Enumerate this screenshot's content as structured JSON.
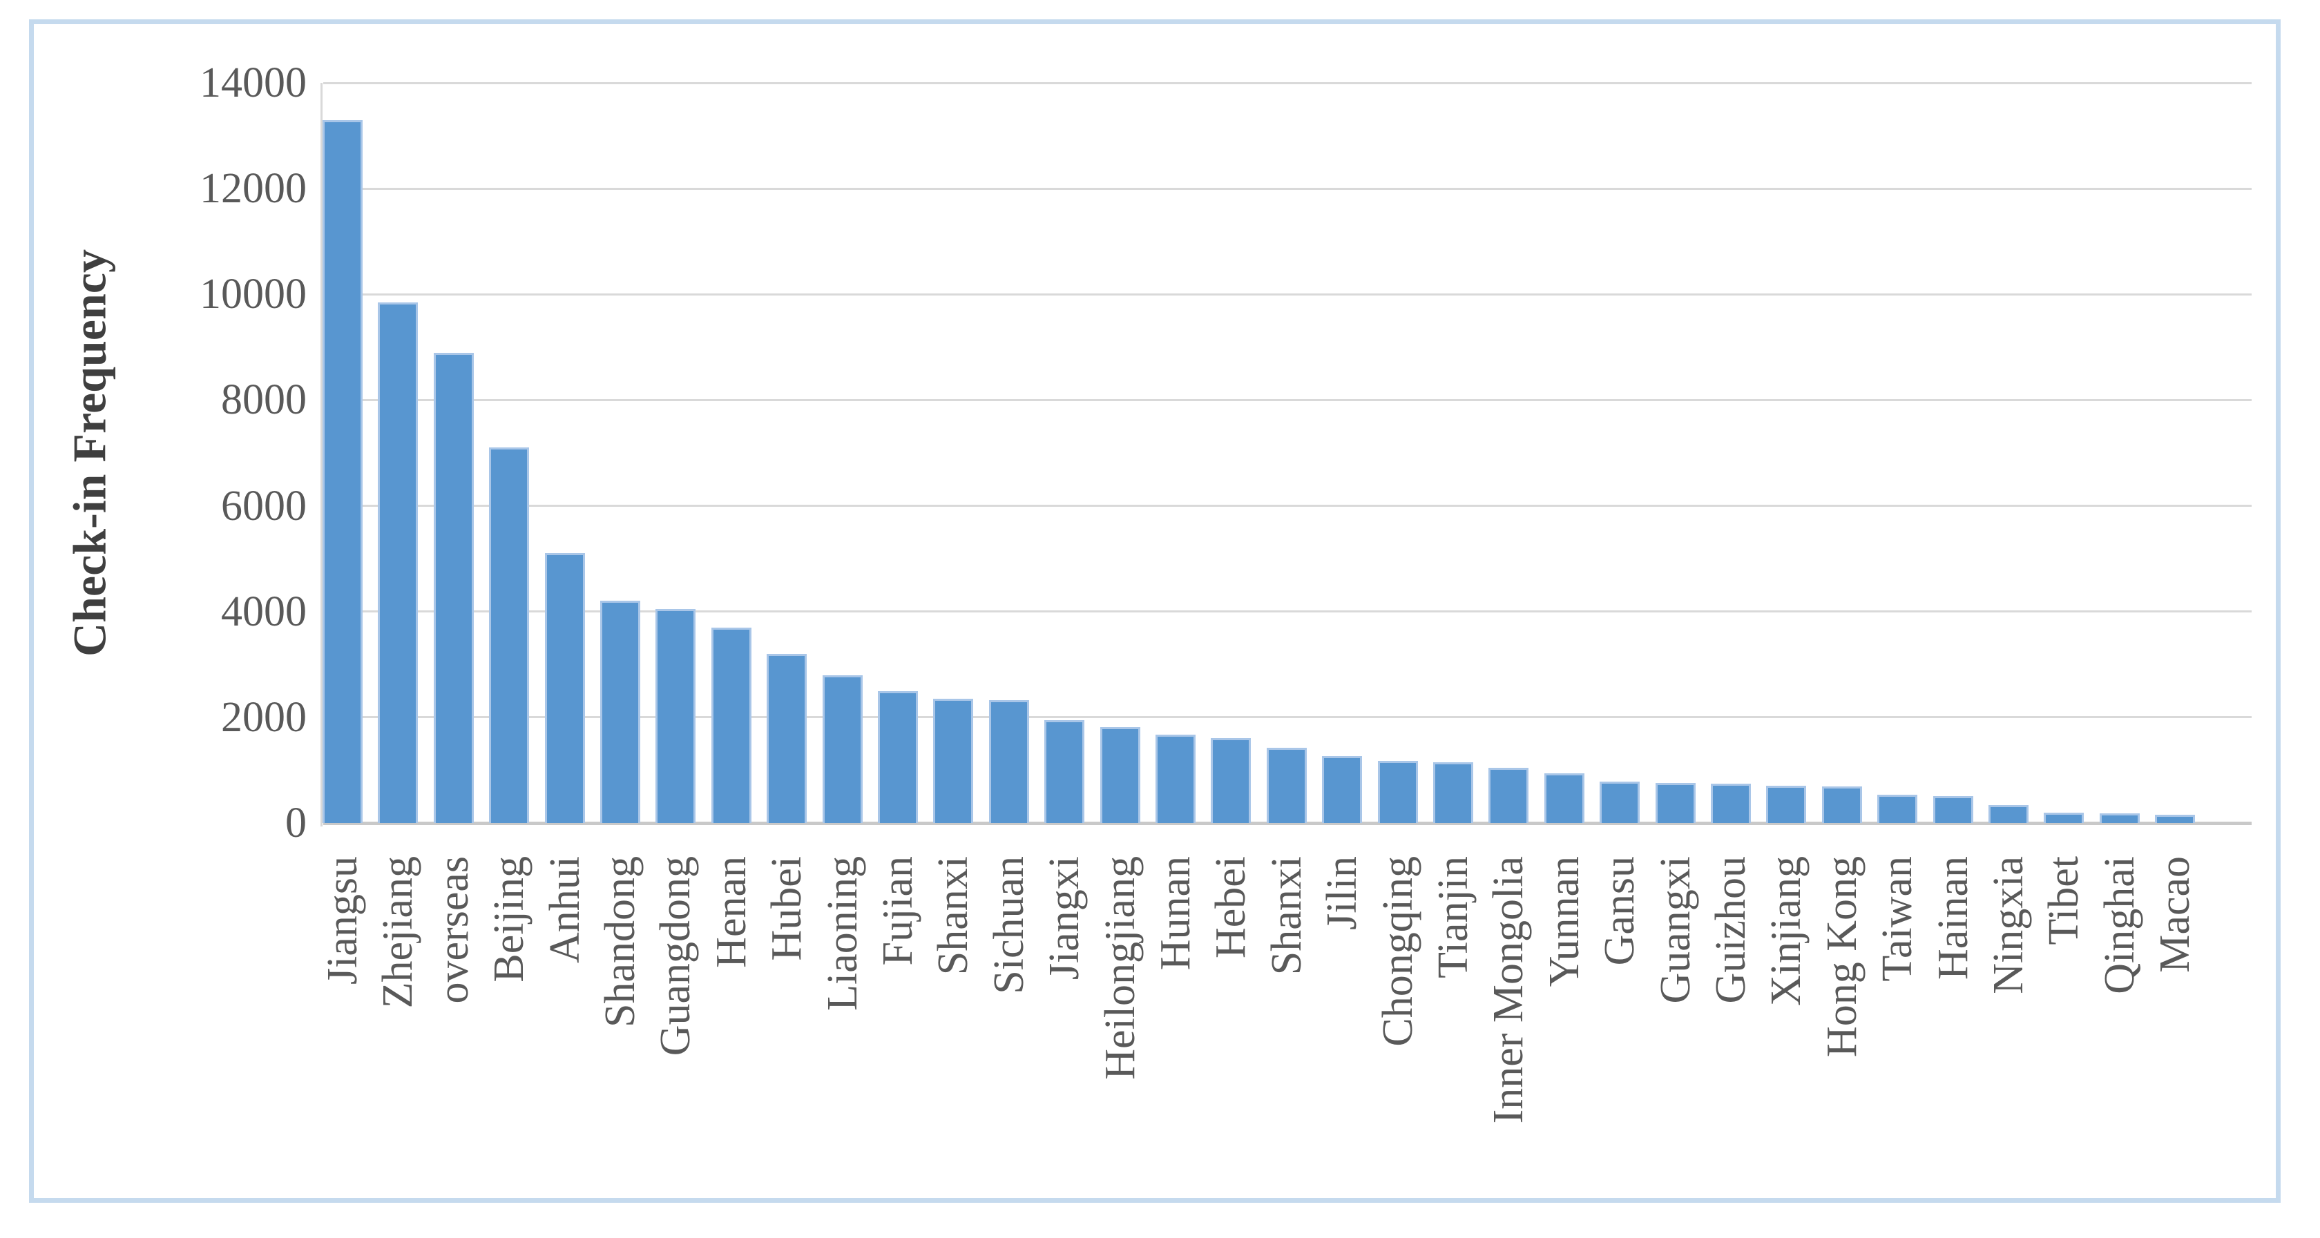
{
  "figure": {
    "background_color": "#ffffff",
    "border_color": "#c5daee"
  },
  "chart_data": {
    "type": "bar",
    "title": "",
    "xlabel": "",
    "ylabel": "Check-in Frequency",
    "ylim": [
      0,
      14000
    ],
    "yticks": [
      0,
      2000,
      4000,
      6000,
      8000,
      10000,
      12000,
      14000
    ],
    "grid": "horizontal",
    "legend_position": "none",
    "bar_color": "#5896d0",
    "bar_edge_color": "#a9c6e8",
    "gridline_color": "#d9d9d9",
    "text_color": "#595959",
    "categories": [
      "Jiangsu",
      "Zhejiang",
      "overseas",
      "Beijing",
      "Anhui",
      "Shandong",
      "Guangdong",
      "Henan",
      "Hubei",
      "Liaoning",
      "Fujian",
      "Shanxi",
      "Sichuan",
      "Jiangxi",
      "Heilongjiang",
      "Hunan",
      "Hebei",
      "Shanxi",
      "Jilin",
      "Chongqing",
      "Tianjin",
      "Inner Mongolia",
      "Yunnan",
      "Gansu",
      "Guangxi",
      "Guizhou",
      "Xinjiang",
      "Hong Kong",
      "Taiwan",
      "Hainan",
      "Ningxia",
      "Tibet",
      "Qinghai",
      "Macao"
    ],
    "values": [
      13300,
      9850,
      8900,
      7100,
      5100,
      4200,
      4050,
      3700,
      3200,
      2800,
      2500,
      2350,
      2330,
      1940,
      1820,
      1670,
      1600,
      1420,
      1270,
      1180,
      1150,
      1040,
      940,
      780,
      760,
      750,
      700,
      690,
      540,
      510,
      340,
      200,
      180,
      160
    ]
  }
}
